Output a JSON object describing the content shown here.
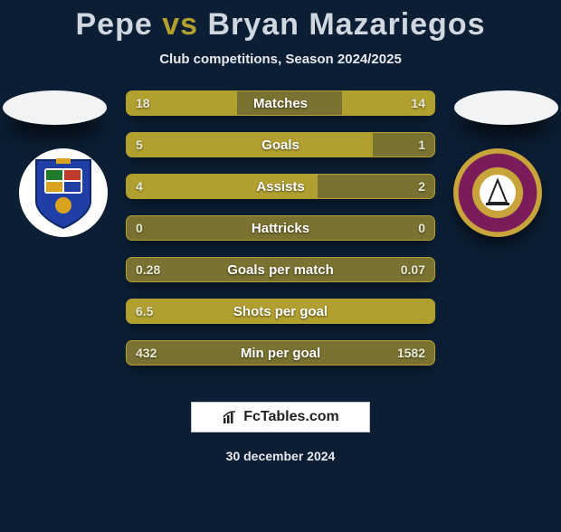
{
  "title": {
    "player1": "Pepe",
    "vs": "vs",
    "player2": "Bryan Mazariegos",
    "highlight_color": "#b19f30",
    "text_color": "#cfd7e1",
    "fontsize": 34
  },
  "subtitle": "Club competitions, Season 2024/2025",
  "background_color": "#0b1e33",
  "bars": {
    "fill_color": "#b19f30",
    "track_color": "#7a7230",
    "text_color": "#ffffff",
    "value_color": "#e6e9d6",
    "height": 28,
    "gap": 18,
    "radius": 7,
    "rows": [
      {
        "label": "Matches",
        "left_val": "18",
        "right_val": "14",
        "left_pct": 36,
        "right_pct": 30
      },
      {
        "label": "Goals",
        "left_val": "5",
        "right_val": "1",
        "left_pct": 80,
        "right_pct": 0
      },
      {
        "label": "Assists",
        "left_val": "4",
        "right_val": "2",
        "left_pct": 62,
        "right_pct": 0
      },
      {
        "label": "Hattricks",
        "left_val": "0",
        "right_val": "0",
        "left_pct": 0,
        "right_pct": 0
      },
      {
        "label": "Goals per match",
        "left_val": "0.28",
        "right_val": "0.07",
        "left_pct": 0,
        "right_pct": 0
      },
      {
        "label": "Shots per goal",
        "left_val": "6.5",
        "right_val": "",
        "left_pct": 100,
        "right_pct": 0
      },
      {
        "label": "Min per goal",
        "left_val": "432",
        "right_val": "1582",
        "left_pct": 0,
        "right_pct": 0
      }
    ]
  },
  "ovals": {
    "width": 115,
    "height": 38,
    "color": "#f2f3f5"
  },
  "club_left": {
    "bg": "#ffffff",
    "shield_blue": "#1f3fa6",
    "shield_accent": "#d9a31e",
    "shield_green": "#1f7a2a",
    "shield_red": "#c0392b"
  },
  "club_right": {
    "ring_outer": "#c9a43b",
    "ring_inner": "#7a1c5a"
  },
  "footer": {
    "brand": "FcTables.com",
    "bg": "#ffffff",
    "border": "#bfc4cc",
    "text": "#222222"
  },
  "date": "30 december 2024"
}
